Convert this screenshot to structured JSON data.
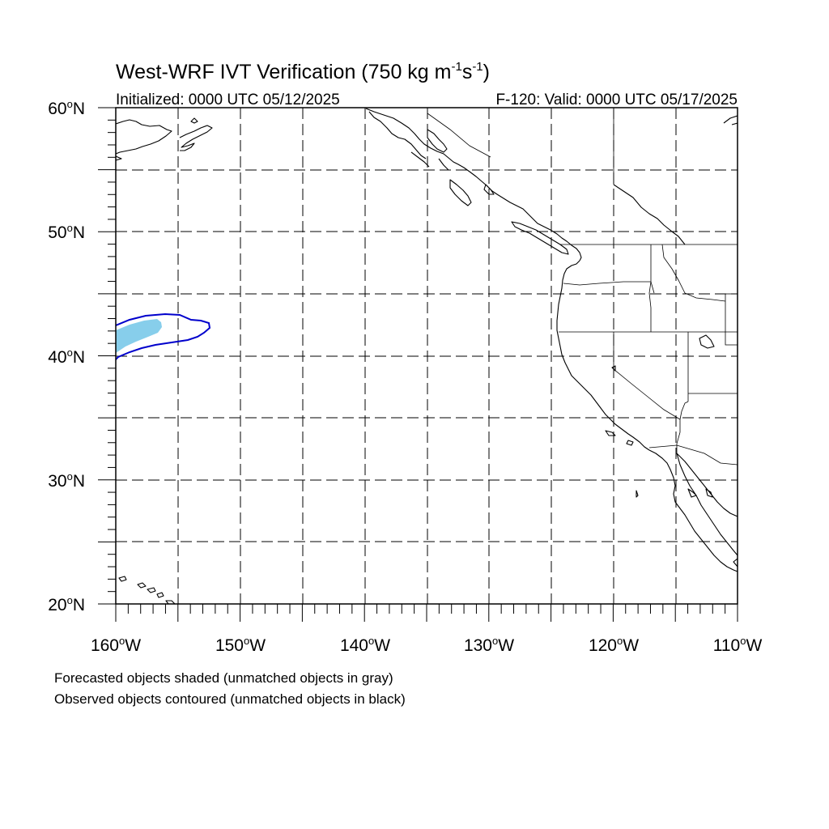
{
  "header": {
    "title_main": "West-WRF IVT Verification (750 kg m",
    "title_exp1": "-1",
    "title_mid": "s",
    "title_exp2": "-1",
    "title_end": ")",
    "initialized": "Initialized: 0000 UTC 05/12/2025",
    "valid": "F-120: Valid: 0000 UTC 05/17/2025"
  },
  "map": {
    "lat_labels": [
      {
        "deg": "60",
        "hem": "N"
      },
      {
        "deg": "50",
        "hem": "N"
      },
      {
        "deg": "40",
        "hem": "N"
      },
      {
        "deg": "30",
        "hem": "N"
      },
      {
        "deg": "20",
        "hem": "N"
      }
    ],
    "lon_labels": [
      {
        "deg": "160",
        "hem": "W"
      },
      {
        "deg": "150",
        "hem": "W"
      },
      {
        "deg": "140",
        "hem": "W"
      },
      {
        "deg": "130",
        "hem": "W"
      },
      {
        "deg": "120",
        "hem": "W"
      },
      {
        "deg": "110",
        "hem": "W"
      }
    ],
    "degree_symbol": "o",
    "forecast_color": "#87ceeb",
    "observed_color": "#0000cc"
  },
  "footer": {
    "line1": "Forecasted objects shaded (unmatched objects in gray)",
    "line2": "Observed objects contoured (unmatched objects in black)"
  }
}
